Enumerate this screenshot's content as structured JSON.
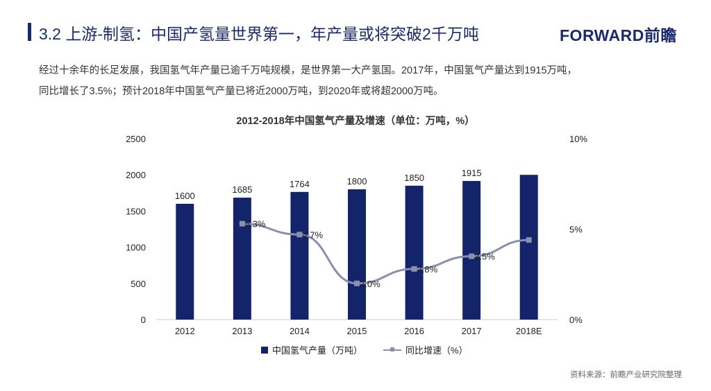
{
  "header": {
    "title": "3.2 上游-制氢：中国产氢量世界第一，年产量或将突破2千万吨",
    "logo": "FORWARD前瞻"
  },
  "body": {
    "line1": "经过十余年的长足发展，我国氢气年产量已逾千万吨规模，是世界第一大产氢国。2017年，中国氢气产量达到1915万吨，",
    "line2": "同比增长了3.5%；预计2018年中国氢气产量已将近2000万吨，到2020年或将超2000万吨。"
  },
  "chart_data": {
    "type": "bar",
    "title": "2012-2018年中国氢气产量及增速（单位：万吨，%）",
    "categories": [
      "2012",
      "2013",
      "2014",
      "2015",
      "2016",
      "2017",
      "2018E"
    ],
    "series": [
      {
        "name": "中国氢气产量（万吨）",
        "type": "bar",
        "values": [
          1600,
          1685,
          1764,
          1800,
          1850,
          1915,
          2000
        ],
        "labels": [
          "1600",
          "1685",
          "1764",
          "1800",
          "1850",
          "1915",
          ""
        ],
        "color": "#13246b"
      },
      {
        "name": "同比增速（%）",
        "type": "line",
        "axis": "right",
        "values": [
          null,
          5.3,
          4.7,
          2.0,
          2.8,
          3.5,
          4.4
        ],
        "labels": [
          "",
          "5.3%",
          "4.7%",
          "2.0%",
          "2.8%",
          "3.5%",
          ""
        ],
        "color": "#8a8fb0"
      }
    ],
    "ylim": [
      0,
      2500
    ],
    "yticks": [
      "0",
      "500",
      "1000",
      "1500",
      "2000",
      "2500"
    ],
    "y2lim": [
      0,
      10
    ],
    "y2ticks": [
      "0%",
      "5%",
      "10%"
    ]
  },
  "source": "资料来源：前瞻产业研究院整理"
}
